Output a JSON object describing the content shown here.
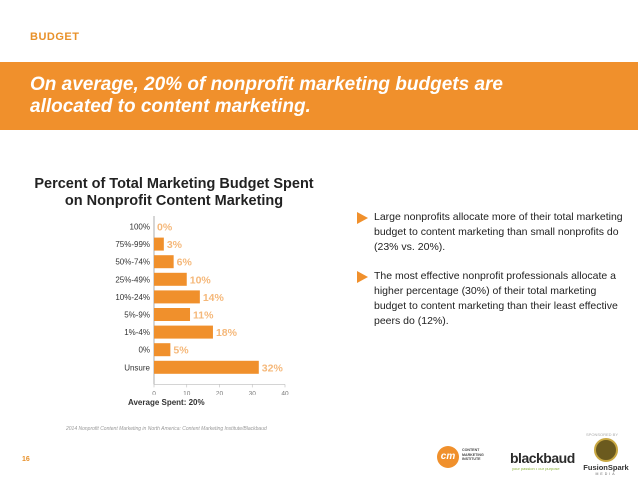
{
  "header": {
    "section_label": "BUDGET",
    "headline": "On average, 20% of nonprofit marketing budgets are allocated to content marketing."
  },
  "chart_data": {
    "type": "bar",
    "orientation": "horizontal",
    "title": "Percent of Total Marketing Budget Spent on Nonprofit Content Marketing",
    "categories": [
      "100%",
      "75%-99%",
      "50%-74%",
      "25%-49%",
      "10%-24%",
      "5%-9%",
      "1%-4%",
      "0%",
      "Unsure"
    ],
    "values": [
      0,
      3,
      6,
      10,
      14,
      11,
      18,
      5,
      32
    ],
    "value_labels": [
      "0%",
      "3%",
      "6%",
      "10%",
      "14%",
      "11%",
      "18%",
      "5%",
      "32%"
    ],
    "xlim": [
      0,
      40
    ],
    "x_ticks": [
      "0",
      "10",
      "20",
      "30",
      "40"
    ],
    "grid": false,
    "bar_color": "#f0902c",
    "label_color": "#f5b87a",
    "footer_label": "Average Spent: 20%",
    "source": "2014 Nonprofit Content Marketing in North America: Content Marketing Institute/Blackbaud"
  },
  "bullets": [
    "Large nonprofits allocate more of their total marketing budget to content marketing than small nonprofits do (23% vs. 20%).",
    "The most effective nonprofit professionals allocate a higher percentage (30%) of their total marketing budget to content marketing than their least effective peers do (12%)."
  ],
  "footer": {
    "page_number": "16",
    "sponsored_by": "SPONSORED BY",
    "cmi_mark": "cm",
    "cmi_name": "CONTENT MARKETING INSTITUTE",
    "blackbaud_name": "blackbaud",
    "blackbaud_tagline": "your passion • our purpose",
    "fusionspark_name": "FusionSpark",
    "fusionspark_sub": "MEDIA"
  },
  "colors": {
    "accent": "#f0902c",
    "text": "#222222"
  }
}
